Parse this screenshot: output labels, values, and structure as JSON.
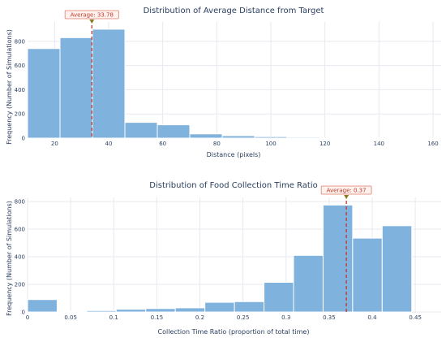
{
  "chart_data": [
    {
      "type": "histogram",
      "title": "Distribution of Average Distance from Target",
      "xlabel": "Distance (pixels)",
      "ylabel": "Frequency (Number of Simulations)",
      "xlim": [
        10,
        163
      ],
      "ylim": [
        0,
        960
      ],
      "xticks": [
        20,
        40,
        60,
        80,
        100,
        120,
        140,
        160
      ],
      "yticks": [
        0,
        200,
        400,
        600,
        800
      ],
      "bin_width": 12,
      "bin_start": 10,
      "values": [
        740,
        830,
        900,
        130,
        110,
        35,
        20,
        12,
        8,
        5,
        3,
        2,
        1
      ],
      "average": 33.78,
      "average_label": "Average: 33.78",
      "grid": true,
      "color": "#7fb2dc",
      "average_color": "#c0392b"
    },
    {
      "type": "histogram",
      "title": "Distribution of Food Collection Time Ratio",
      "xlabel": "Collection Time Ratio (proportion of total time)",
      "ylabel": "Frequency (Number of Simulations)",
      "xlim": [
        0,
        0.48
      ],
      "ylim": [
        0,
        830
      ],
      "xticks": [
        0,
        0.05,
        0.1,
        0.15,
        0.2,
        0.25,
        0.3,
        0.35,
        0.4,
        0.45
      ],
      "xtick_labels": [
        "0",
        "0.05",
        "0.1",
        "0.15",
        "0.2",
        "0.25",
        "0.3",
        "0.35",
        "0.4",
        "0.45"
      ],
      "yticks": [
        0,
        200,
        400,
        600,
        800
      ],
      "bin_width": 0.0343,
      "bin_start": 0,
      "values": [
        90,
        5,
        10,
        20,
        25,
        30,
        70,
        75,
        215,
        410,
        775,
        535,
        625
      ],
      "average": 0.37,
      "average_label": "Average: 0.37",
      "grid": true,
      "color": "#7fb2dc",
      "average_color": "#c0392b"
    }
  ]
}
